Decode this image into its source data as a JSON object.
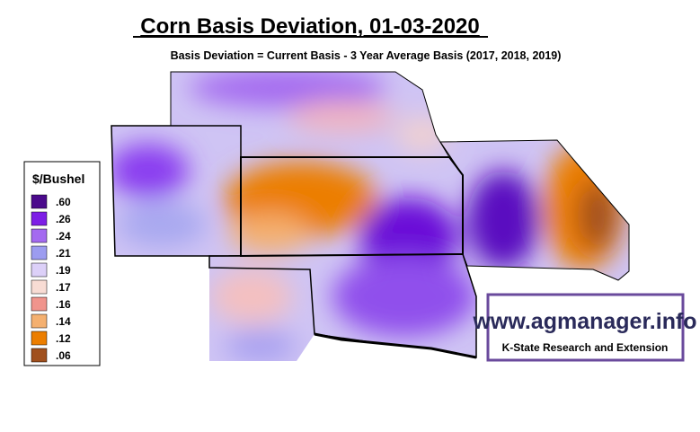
{
  "header": {
    "title": "Corn Basis Deviation, 01-03-2020",
    "subtitle": "Basis Deviation = Current Basis - 3 Year Average Basis (2017, 2018, 2019)"
  },
  "legend": {
    "title": "$/Bushel",
    "items": [
      {
        "label": ".60",
        "color": "#4b0a8c"
      },
      {
        "label": ".26",
        "color": "#7d1ee6"
      },
      {
        "label": ".24",
        "color": "#a46af0"
      },
      {
        "label": ".21",
        "color": "#9c9cf0"
      },
      {
        "label": ".19",
        "color": "#dcd0f8"
      },
      {
        "label": ".17",
        "color": "#f8dcd4"
      },
      {
        "label": ".16",
        "color": "#f0948c"
      },
      {
        "label": ".14",
        "color": "#f4b070"
      },
      {
        "label": ".12",
        "color": "#ec7e00"
      },
      {
        "label": ".06",
        "color": "#a0501e"
      }
    ]
  },
  "branding": {
    "url": "www.agmanager.info",
    "org": "K-State Research and Extension"
  }
}
